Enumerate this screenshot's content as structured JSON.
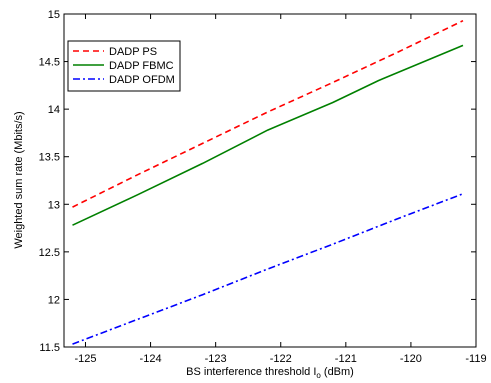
{
  "chart_data": {
    "type": "line",
    "title": "",
    "xlabel": "BS interference threshold I",
    "xlabel_sub": "o",
    "xlabel_unit": " (dBm)",
    "ylabel": "Weighted sum rate (Mbits/s)",
    "xlim": [
      -125.33,
      -119
    ],
    "ylim": [
      11.5,
      15
    ],
    "xticks": [
      -125,
      -124,
      -123,
      -122,
      -121,
      -120,
      -119
    ],
    "yticks": [
      11.5,
      12,
      12.5,
      13,
      13.5,
      14,
      14.5,
      15
    ],
    "grid": false,
    "legend_position": "top-left",
    "series": [
      {
        "name": "DADP PS",
        "color": "#ff0000",
        "dash": "dashed",
        "x": [
          -125.2,
          -124.2,
          -123.2,
          -122.2,
          -121.2,
          -120.2,
          -119.2
        ],
        "y": [
          12.97,
          13.31,
          13.64,
          13.97,
          14.28,
          14.6,
          14.93
        ]
      },
      {
        "name": "DADP FBMC",
        "color": "#008000",
        "dash": "solid",
        "x": [
          -125.2,
          -124.2,
          -123.2,
          -122.2,
          -121.2,
          -120.5,
          -119.2
        ],
        "y": [
          12.78,
          13.1,
          13.43,
          13.78,
          14.07,
          14.3,
          14.67
        ]
      },
      {
        "name": "DADP OFDM",
        "color": "#0000ff",
        "dash": "dashdot",
        "x": [
          -125.2,
          -124.2,
          -123.2,
          -122.2,
          -121.2,
          -120.2,
          -119.2
        ],
        "y": [
          11.53,
          11.79,
          12.05,
          12.32,
          12.58,
          12.85,
          13.11
        ]
      }
    ]
  }
}
